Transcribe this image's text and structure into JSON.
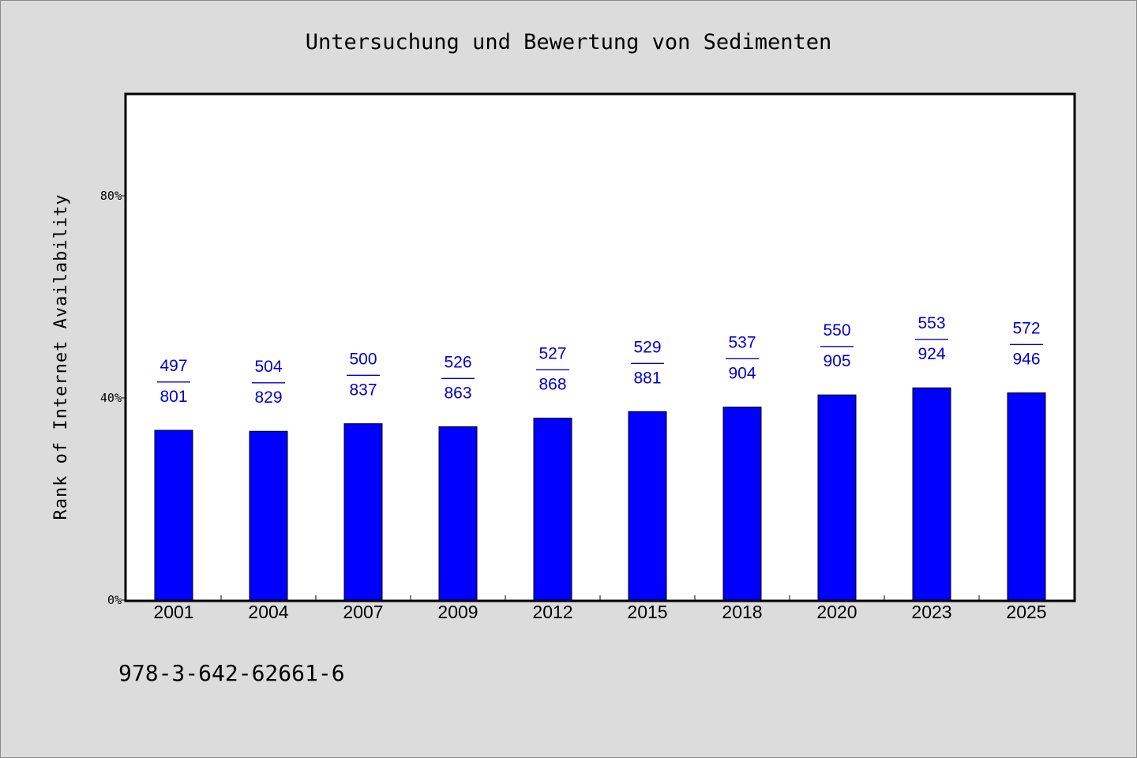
{
  "chart_data": {
    "type": "bar",
    "title": "Untersuchung und Bewertung von Sedimenten",
    "ylabel": "Rank of Internet Availability",
    "xlabel": "",
    "categories": [
      "2001",
      "2004",
      "2007",
      "2009",
      "2012",
      "2015",
      "2018",
      "2020",
      "2023",
      "2025"
    ],
    "values": [
      33.6,
      33.4,
      34.9,
      34.3,
      36.0,
      37.3,
      38.2,
      40.6,
      42.0,
      41.0
    ],
    "label_top": [
      "497",
      "504",
      "500",
      "526",
      "527",
      "529",
      "537",
      "550",
      "553",
      "572"
    ],
    "label_sep": "——",
    "label_bottom": [
      "801",
      "829",
      "837",
      "863",
      "868",
      "881",
      "904",
      "905",
      "924",
      "946"
    ],
    "yticks": [
      {
        "value": 0,
        "label": "0%"
      },
      {
        "value": 40,
        "label": "40%"
      },
      {
        "value": 80,
        "label": "80%"
      }
    ],
    "ylim": [
      0,
      100
    ],
    "grid": false,
    "bar_color": "#0000ff",
    "label_color": "#0000cc",
    "plot_background": "#ffffff",
    "figure_background": "#dcdcdc"
  },
  "footer": {
    "isbn": "978-3-642-62661-6"
  }
}
